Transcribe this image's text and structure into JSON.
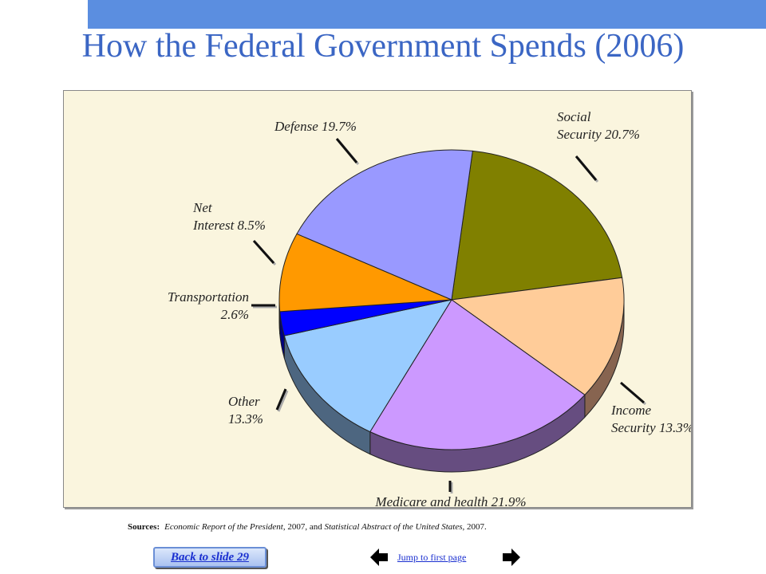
{
  "title": "How the Federal Government Spends (2006)",
  "colors": {
    "title": "#3b66c4",
    "top_bar": "#5b8ee0",
    "chart_background": "#faf5de",
    "link": "#1a2fd0"
  },
  "chart_data": {
    "type": "pie",
    "title": "",
    "three_d": true,
    "slices": [
      {
        "name": "Social Security",
        "value": 20.7,
        "label_lines": [
          "Social",
          "Security 20.7%"
        ],
        "color": "#808000",
        "side_color": "#5a5a00"
      },
      {
        "name": "Income Security",
        "value": 13.3,
        "label_lines": [
          "Income",
          "Security 13.3%"
        ],
        "color": "#ffcc99",
        "side_color": "#876450"
      },
      {
        "name": "Medicare and health",
        "value": 21.9,
        "label_lines": [
          "Medicare and health 21.9%"
        ],
        "color": "#cc99ff",
        "side_color": "#664d80"
      },
      {
        "name": "Other",
        "value": 13.3,
        "label_lines": [
          "Other",
          "13.3%"
        ],
        "color": "#99ccff",
        "side_color": "#4d6680"
      },
      {
        "name": "Transportation",
        "value": 2.6,
        "label_lines": [
          "Transportation",
          "2.6%"
        ],
        "color": "#0000ff",
        "side_color": "#000080"
      },
      {
        "name": "Net Interest",
        "value": 8.5,
        "label_lines": [
          "Net",
          "Interest 8.5%"
        ],
        "color": "#ff9900",
        "side_color": "#804d00"
      },
      {
        "name": "Defense",
        "value": 19.7,
        "label_lines": [
          "Defense 19.7%"
        ],
        "color": "#9999ff",
        "side_color": "#4d4d80"
      }
    ]
  },
  "sources": {
    "label": "Sources:",
    "part1": "Economic Report of the President",
    "part2": ", 2007, and ",
    "part3": "Statistical Abstract of the United States",
    "part4": ", 2007."
  },
  "nav": {
    "back_label": "Back to slide 29",
    "jump_label": "Jump to first page",
    "prev_icon": "left-arrow-icon",
    "next_icon": "right-arrow-icon"
  }
}
